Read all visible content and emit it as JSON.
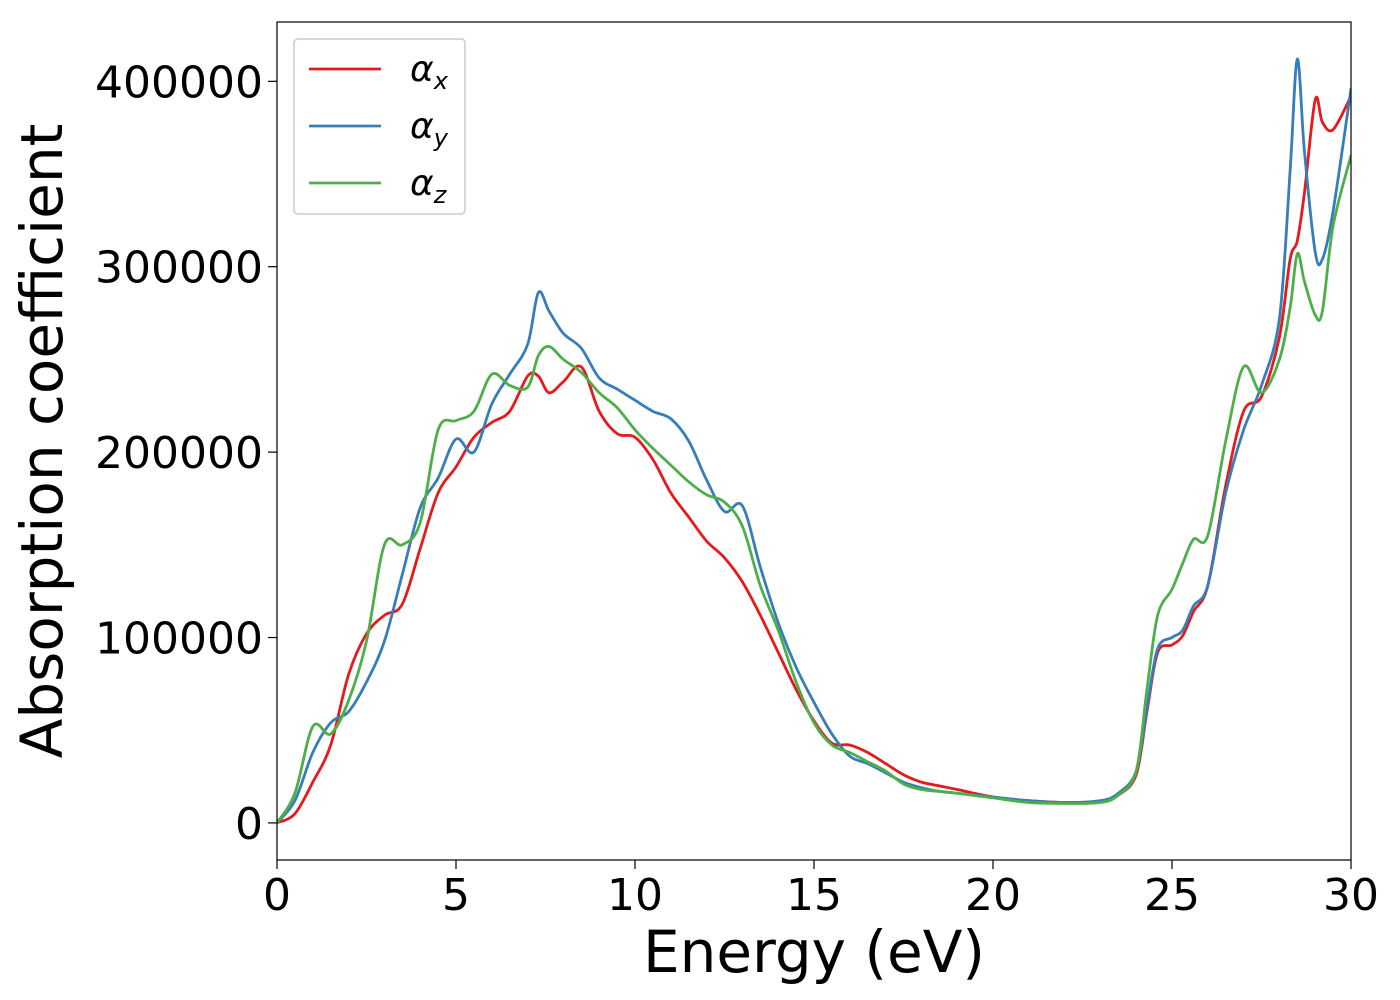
{
  "chart_data": {
    "type": "line",
    "xlabel": "Energy (eV)",
    "ylabel": "Absorption coefficient",
    "xlim": [
      0,
      30
    ],
    "ylim": [
      -20000,
      432000
    ],
    "xticks": [
      "0",
      "5",
      "10",
      "15",
      "20",
      "25",
      "30"
    ],
    "yticks": [
      "0",
      "100000",
      "200000",
      "300000",
      "400000"
    ],
    "grid": false,
    "legend_position": "top-left",
    "x": [
      0,
      0.5,
      1,
      1.5,
      2,
      2.5,
      3,
      3.5,
      4,
      4.5,
      5,
      5.5,
      6,
      6.5,
      7,
      7.3,
      7.6,
      8,
      8.5,
      9,
      9.5,
      10,
      10.5,
      11,
      11.5,
      12,
      12.5,
      13,
      13.5,
      14,
      14.5,
      15,
      15.5,
      16,
      16.5,
      17,
      17.5,
      18,
      18.5,
      19,
      20,
      21,
      22,
      23,
      23.5,
      24,
      24.3,
      24.6,
      25,
      25.3,
      25.6,
      26,
      26.5,
      27,
      27.5,
      28,
      28.3,
      28.5,
      28.7,
      29,
      29.2,
      29.5,
      30
    ],
    "series": [
      {
        "name": "α",
        "subscript": "x",
        "color": "#e41a1c",
        "values": [
          0,
          5000,
          22000,
          42000,
          80000,
          102000,
          112000,
          118000,
          148000,
          178000,
          192000,
          208000,
          216000,
          222000,
          241000,
          241000,
          232000,
          238000,
          246000,
          222000,
          210000,
          208000,
          196000,
          178000,
          165000,
          152000,
          143000,
          130000,
          112000,
          92000,
          72000,
          55000,
          43000,
          42000,
          38000,
          32000,
          26000,
          22000,
          20000,
          18000,
          14000,
          12000,
          11000,
          11500,
          15000,
          26000,
          60000,
          92000,
          96000,
          101000,
          114000,
          128000,
          182000,
          222000,
          230000,
          262000,
          304000,
          314000,
          340000,
          390000,
          378000,
          374000,
          392000
        ]
      },
      {
        "name": "α",
        "subscript": "y",
        "color": "#377eb8",
        "values": [
          0,
          12000,
          38000,
          54000,
          60000,
          76000,
          98000,
          134000,
          170000,
          186000,
          207000,
          200000,
          226000,
          242000,
          258000,
          286000,
          276000,
          264000,
          256000,
          240000,
          234000,
          228000,
          222000,
          218000,
          206000,
          185000,
          168000,
          171000,
          138000,
          108000,
          84000,
          65000,
          48000,
          36000,
          32000,
          27000,
          22000,
          19000,
          17000,
          16000,
          14000,
          12000,
          11000,
          12000,
          16000,
          28000,
          62000,
          94000,
          100000,
          104000,
          117000,
          128000,
          178000,
          212000,
          236000,
          272000,
          352000,
          412000,
          362000,
          308000,
          304000,
          330000,
          396000
        ]
      },
      {
        "name": "α",
        "subscript": "z",
        "color": "#4daf4a",
        "values": [
          0,
          16000,
          52000,
          48000,
          66000,
          98000,
          150000,
          150000,
          162000,
          212000,
          217000,
          222000,
          242000,
          236000,
          235000,
          252000,
          257000,
          250000,
          243000,
          232000,
          224000,
          212000,
          202000,
          193000,
          184000,
          177000,
          173000,
          160000,
          128000,
          104000,
          76000,
          54000,
          42000,
          38000,
          33000,
          28000,
          21000,
          18000,
          17000,
          16000,
          13500,
          11000,
          10500,
          11000,
          15000,
          28000,
          72000,
          112000,
          126000,
          140000,
          153000,
          155000,
          206000,
          246000,
          232000,
          250000,
          278000,
          307000,
          292000,
          274000,
          276000,
          322000,
          360000
        ]
      }
    ]
  }
}
